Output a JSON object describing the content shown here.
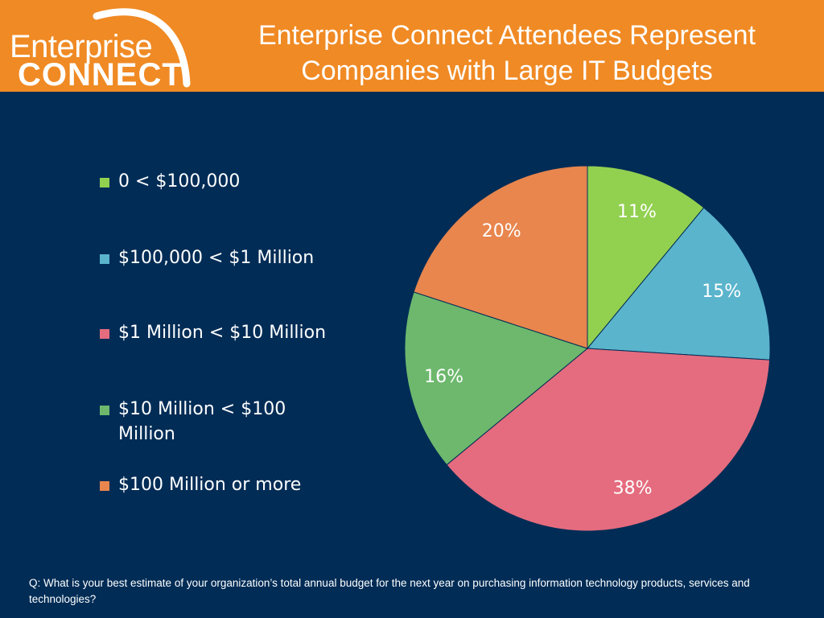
{
  "header": {
    "logo_line1": "Enterprise",
    "logo_line2": "CONNECT",
    "title_line1": "Enterprise Connect Attendees Represent",
    "title_line2": "Companies with Large IT Budgets"
  },
  "chart_data": {
    "type": "pie",
    "title": "",
    "legend_position": "left",
    "categories": [
      "0 < $100,000",
      "$100,000 < $1 Million",
      "$1 Million < $10 Million",
      "$10 Million < $100 Million",
      "$100 Million or more"
    ],
    "values": [
      11,
      15,
      38,
      16,
      20
    ],
    "labels": [
      "11%",
      "15%",
      "38%",
      "16%",
      "20%"
    ],
    "colors": [
      "#92d050",
      "#5ab4cc",
      "#e46c7e",
      "#6db86d",
      "#e8864e"
    ]
  },
  "footnote": "Q:  What is your best estimate of your organization’s total annual budget for the next year on purchasing information technology products, services and technologies?"
}
